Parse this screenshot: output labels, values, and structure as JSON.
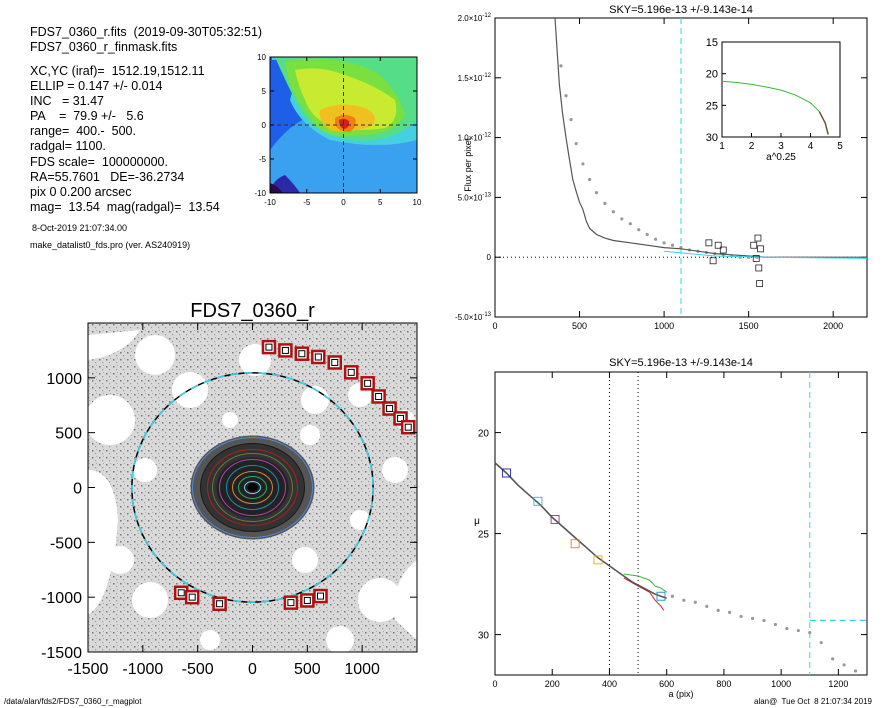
{
  "info": {
    "lines": [
      "FDS7_0360_r.fits  (2019-09-30T05:32:51)",
      "FDS7_0360_r_finmask.fits",
      "XC,YC (iraf)=  1512.19,1512.11",
      "ELLIP = 0.147 +/- 0.014",
      "INC   = 31.47",
      "PA    =  79.9 +/-   5.6",
      "range=  400.-  500.",
      "radgal= 1100.",
      "FDS scale=  100000000.",
      "RA=55.7601   DE=-36.2734",
      "pix 0 0.200 arcsec",
      "mag=  13.54  mag(radgal)=  13.54"
    ],
    "date": "8-Oct-2019 21:07:34.00",
    "program": "make_datalist0_fds.pro (ver. AS240919)"
  },
  "footer": {
    "path": "/data/alan/fds2/FDS7_0360_r_magplot",
    "user": "alan@  Tue Oct  8 21:07:34 2019"
  },
  "colors": {
    "cyan": "#33d6ee",
    "profile": "#555555",
    "points": "#999999",
    "box_red": "#b01010",
    "green": "#33bb33"
  },
  "chart_data": [
    {
      "id": "thumbnail",
      "type": "heatmap",
      "title": "",
      "xlabel": "",
      "ylabel": "",
      "xlim": [
        -10,
        10
      ],
      "ylim": [
        -10,
        10
      ],
      "xticks": [
        "-10",
        "-5",
        "0",
        "5",
        "10"
      ],
      "yticks": [
        "-10",
        "-5",
        "0",
        "5",
        "10"
      ]
    },
    {
      "id": "sky_plot",
      "type": "line",
      "title": "SKY=5.196e-13 +/-9.143e-14",
      "xlabel": "",
      "ylabel": "Flux per pixel",
      "xlim": [
        0,
        2200
      ],
      "ylim": [
        -5e-13,
        2e-12
      ],
      "xticks": [
        "0",
        "500",
        "1000",
        "1500",
        "2000"
      ],
      "yticks": [
        {
          "v": -5e-13,
          "m": "-5.0",
          "e": "-13"
        },
        {
          "v": 0,
          "m": "0",
          "e": ""
        },
        {
          "v": 5e-13,
          "m": "5.0",
          "e": "-13"
        },
        {
          "v": 1e-12,
          "m": "1.0",
          "e": "-12"
        },
        {
          "v": 1.5e-12,
          "m": "1.5",
          "e": "-12"
        },
        {
          "v": 2e-12,
          "m": "2.0",
          "e": "-12"
        }
      ],
      "radgal": 1100,
      "profile": [
        [
          355,
          2e-12
        ],
        [
          380,
          1.45e-12
        ],
        [
          400,
          1.2e-12
        ],
        [
          420,
          1e-12
        ],
        [
          440,
          8.2e-13
        ],
        [
          460,
          6.5e-13
        ],
        [
          480,
          5.5e-13
        ],
        [
          500,
          4.6e-13
        ],
        [
          520,
          4e-13
        ],
        [
          540,
          3e-13
        ],
        [
          560,
          2.4e-13
        ],
        [
          600,
          1.9e-13
        ],
        [
          650,
          1.6e-13
        ],
        [
          700,
          1.4e-13
        ],
        [
          800,
          1.2e-13
        ],
        [
          900,
          1e-13
        ],
        [
          1000,
          8e-14
        ],
        [
          1100,
          7e-14
        ],
        [
          1200,
          5e-14
        ],
        [
          1300,
          3e-14
        ],
        [
          1400,
          2e-14
        ],
        [
          1500,
          1e-14
        ],
        [
          1600,
          0
        ],
        [
          1800,
          0
        ],
        [
          2000,
          0
        ],
        [
          2200,
          0
        ]
      ],
      "points": [
        [
          390,
          1.6e-12
        ],
        [
          420,
          1.35e-12
        ],
        [
          450,
          1.15e-12
        ],
        [
          480,
          9.5e-13
        ],
        [
          520,
          7.8e-13
        ],
        [
          560,
          6.5e-13
        ],
        [
          600,
          5.4e-13
        ],
        [
          650,
          4.5e-13
        ],
        [
          700,
          3.8e-13
        ],
        [
          750,
          3.2e-13
        ],
        [
          800,
          2.8e-13
        ],
        [
          850,
          2.3e-13
        ],
        [
          900,
          1.9e-13
        ],
        [
          950,
          1.5e-13
        ],
        [
          1000,
          1.2e-13
        ],
        [
          1050,
          1e-13
        ],
        [
          1100,
          8e-14
        ],
        [
          1150,
          6e-14
        ],
        [
          1200,
          5e-14
        ],
        [
          1250,
          4e-14
        ],
        [
          1300,
          3e-14
        ],
        [
          1350,
          2e-14
        ],
        [
          1400,
          1e-14
        ],
        [
          1450,
          0
        ],
        [
          1500,
          0
        ],
        [
          1550,
          0
        ]
      ],
      "squares": [
        [
          1265,
          1.2e-13
        ],
        [
          1290,
          -3e-14
        ],
        [
          1320,
          1e-13
        ],
        [
          1350,
          6e-14
        ],
        [
          1530,
          1e-13
        ],
        [
          1545,
          -1e-14
        ],
        [
          1555,
          1.6e-13
        ],
        [
          1560,
          -9e-14
        ],
        [
          1565,
          -2.2e-13
        ],
        [
          1570,
          7e-14
        ]
      ],
      "inset": {
        "xlabel": "a^0.25",
        "xlim": [
          1,
          5
        ],
        "ylim": [
          15,
          30
        ],
        "xticks": [
          "1",
          "2",
          "3",
          "4",
          "5"
        ],
        "yticks": [
          "15",
          "20",
          "25",
          "30"
        ],
        "curve": [
          [
            1.0,
            21.2
          ],
          [
            1.5,
            21.4
          ],
          [
            2.0,
            21.7
          ],
          [
            2.5,
            22.1
          ],
          [
            3.0,
            22.6
          ],
          [
            3.5,
            23.4
          ],
          [
            4.0,
            24.6
          ],
          [
            4.3,
            26.0
          ],
          [
            4.5,
            27.8
          ],
          [
            4.6,
            29.6
          ]
        ]
      }
    },
    {
      "id": "mu_plot",
      "type": "line",
      "title": "SKY=5.196e-13 +/-9.143e-14",
      "xlabel": "a (pix)",
      "ylabel": "μ",
      "xlim": [
        0,
        1300
      ],
      "ylim": [
        32,
        17
      ],
      "xticks": [
        "0",
        "200",
        "400",
        "600",
        "800",
        "1000",
        "1200"
      ],
      "yticks": [
        "20",
        "25",
        "30"
      ],
      "range": [
        400,
        500
      ],
      "radgal": 1100,
      "sky_level": 29.3,
      "profile": [
        [
          0,
          21.5
        ],
        [
          40,
          22.0
        ],
        [
          80,
          22.6
        ],
        [
          120,
          23.1
        ],
        [
          160,
          23.6
        ],
        [
          200,
          24.2
        ],
        [
          240,
          24.7
        ],
        [
          280,
          25.2
        ],
        [
          320,
          25.7
        ],
        [
          360,
          26.2
        ],
        [
          400,
          26.6
        ],
        [
          440,
          27.0
        ],
        [
          480,
          27.4
        ],
        [
          520,
          27.7
        ],
        [
          560,
          28.0
        ],
        [
          600,
          28.2
        ]
      ],
      "red": [
        [
          450,
          27.2
        ],
        [
          500,
          27.6
        ],
        [
          540,
          27.9
        ],
        [
          560,
          28.3
        ],
        [
          580,
          28.6
        ],
        [
          590,
          28.8
        ]
      ],
      "green": [
        [
          450,
          27.0
        ],
        [
          500,
          27.1
        ],
        [
          540,
          27.3
        ],
        [
          560,
          27.6
        ],
        [
          580,
          27.7
        ],
        [
          600,
          27.9
        ]
      ],
      "points": [
        [
          620,
          28.1
        ],
        [
          660,
          28.3
        ],
        [
          700,
          28.4
        ],
        [
          740,
          28.6
        ],
        [
          780,
          28.8
        ],
        [
          820,
          28.9
        ],
        [
          860,
          29.1
        ],
        [
          900,
          29.2
        ],
        [
          940,
          29.3
        ],
        [
          980,
          29.5
        ],
        [
          1020,
          29.7
        ],
        [
          1060,
          29.8
        ],
        [
          1100,
          29.9
        ],
        [
          1140,
          30.4
        ],
        [
          1180,
          31.2
        ],
        [
          1220,
          31.5
        ],
        [
          1260,
          31.8
        ]
      ],
      "squares": [
        [
          40,
          22.0
        ],
        [
          150,
          23.4
        ],
        [
          210,
          24.3
        ],
        [
          280,
          25.5
        ],
        [
          360,
          26.3
        ],
        [
          580,
          28.1
        ]
      ]
    },
    {
      "id": "image",
      "type": "scatter",
      "title": "FDS7_0360_r",
      "xlabel": "",
      "ylabel": "",
      "xlim": [
        -1500,
        1500
      ],
      "ylim": [
        -1500,
        1500
      ],
      "xticks": [
        "-1500",
        "-1000",
        "-500",
        "0",
        "500",
        "1000"
      ],
      "yticks": [
        "-1500",
        "-1000",
        "-500",
        "0",
        "500",
        "1000"
      ],
      "radgal": 1100,
      "red_boxes": [
        [
          150,
          1280
        ],
        [
          300,
          1250
        ],
        [
          450,
          1220
        ],
        [
          600,
          1190
        ],
        [
          750,
          1140
        ],
        [
          900,
          1050
        ],
        [
          1050,
          950
        ],
        [
          1150,
          830
        ],
        [
          1250,
          720
        ],
        [
          1350,
          630
        ],
        [
          1420,
          550
        ],
        [
          -650,
          -960
        ],
        [
          -550,
          -1000
        ],
        [
          -300,
          -1060
        ],
        [
          350,
          -1050
        ],
        [
          500,
          -1030
        ],
        [
          620,
          -990
        ]
      ]
    }
  ]
}
